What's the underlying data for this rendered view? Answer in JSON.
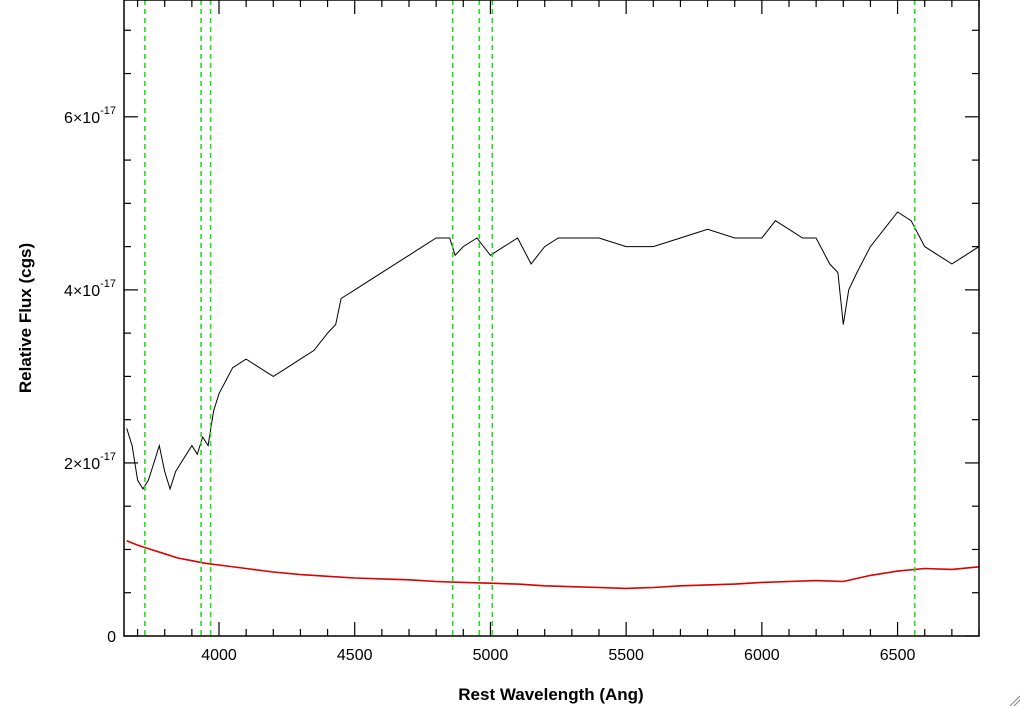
{
  "chart_data": {
    "type": "line",
    "title": "",
    "xlabel": "Rest Wavelength (Ang)",
    "ylabel": "Relative Flux (cgs)",
    "xlim": [
      3650,
      6800
    ],
    "ylim": [
      0,
      7.35e-17
    ],
    "x_ticks": [
      {
        "value": 4000,
        "label": "4000"
      },
      {
        "value": 4500,
        "label": "4500"
      },
      {
        "value": 5000,
        "label": "5000"
      },
      {
        "value": 5500,
        "label": "5500"
      },
      {
        "value": 6000,
        "label": "6000"
      },
      {
        "value": 6500,
        "label": "6500"
      }
    ],
    "y_ticks": [
      {
        "value": 0,
        "label": "0",
        "mantissa": "0",
        "exponent": ""
      },
      {
        "value": 2e-17,
        "label": "2×10⁻¹⁷",
        "mantissa": "2×10",
        "exponent": "-17"
      },
      {
        "value": 4e-17,
        "label": "4×10⁻¹⁷",
        "mantissa": "4×10",
        "exponent": "-17"
      },
      {
        "value": 6e-17,
        "label": "6×10⁻¹⁷",
        "mantissa": "6×10",
        "exponent": "-17"
      }
    ],
    "grid": false,
    "series": [
      {
        "color": "#000000",
        "x": [
          3660,
          3680,
          3700,
          3720,
          3740,
          3760,
          3780,
          3800,
          3820,
          3840,
          3860,
          3880,
          3900,
          3920,
          3940,
          3960,
          3980,
          4000,
          4050,
          4100,
          4150,
          4200,
          4250,
          4300,
          4350,
          4400,
          4430,
          4450,
          4500,
          4550,
          4600,
          4650,
          4700,
          4750,
          4800,
          4850,
          4870,
          4900,
          4950,
          5000,
          5050,
          5100,
          5150,
          5200,
          5250,
          5300,
          5400,
          5500,
          5600,
          5700,
          5800,
          5900,
          6000,
          6050,
          6100,
          6150,
          6200,
          6250,
          6280,
          6300,
          6320,
          6350,
          6400,
          6450,
          6500,
          6550,
          6600,
          6650,
          6700,
          6750,
          6800
        ],
        "y": [
          2.4e-17,
          2.2e-17,
          1.8e-17,
          1.7e-17,
          1.8e-17,
          2e-17,
          2.2e-17,
          1.9e-17,
          1.7e-17,
          1.9e-17,
          2e-17,
          2.1e-17,
          2.2e-17,
          2.1e-17,
          2.3e-17,
          2.2e-17,
          2.6e-17,
          2.8e-17,
          3.1e-17,
          3.2e-17,
          3.1e-17,
          3e-17,
          3.1e-17,
          3.2e-17,
          3.3e-17,
          3.5e-17,
          3.6e-17,
          3.9e-17,
          4e-17,
          4.1e-17,
          4.2e-17,
          4.3e-17,
          4.4e-17,
          4.5e-17,
          4.6e-17,
          4.6e-17,
          4.4e-17,
          4.5e-17,
          4.6e-17,
          4.4e-17,
          4.5e-17,
          4.6e-17,
          4.3e-17,
          4.5e-17,
          4.6e-17,
          4.6e-17,
          4.6e-17,
          4.5e-17,
          4.5e-17,
          4.6e-17,
          4.7e-17,
          4.6e-17,
          4.6e-17,
          4.8e-17,
          4.7e-17,
          4.6e-17,
          4.6e-17,
          4.3e-17,
          4.2e-17,
          3.6e-17,
          4e-17,
          4.2e-17,
          4.5e-17,
          4.7e-17,
          4.9e-17,
          4.8e-17,
          4.5e-17,
          4.4e-17,
          4.3e-17,
          4.4e-17,
          4.5e-17
        ]
      },
      {
        "color": "#dd0000",
        "x": [
          3660,
          3700,
          3750,
          3800,
          3850,
          3900,
          3950,
          4000,
          4100,
          4200,
          4300,
          4400,
          4500,
          4600,
          4700,
          4800,
          4900,
          5000,
          5100,
          5200,
          5300,
          5400,
          5500,
          5600,
          5700,
          5800,
          5900,
          6000,
          6100,
          6200,
          6300,
          6400,
          6500,
          6600,
          6700,
          6800
        ],
        "y": [
          1.1e-17,
          1.05e-17,
          1e-17,
          9.5e-18,
          9e-18,
          8.7e-18,
          8.4e-18,
          8.2e-18,
          7.8e-18,
          7.4e-18,
          7.1e-18,
          6.9e-18,
          6.7e-18,
          6.6e-18,
          6.5e-18,
          6.3e-18,
          6.2e-18,
          6.1e-18,
          6e-18,
          5.8e-18,
          5.7e-18,
          5.6e-18,
          5.5e-18,
          5.6e-18,
          5.8e-18,
          5.9e-18,
          6e-18,
          6.2e-18,
          6.3e-18,
          6.4e-18,
          6.3e-18,
          7e-18,
          7.5e-18,
          7.8e-18,
          7.7e-18,
          8e-18
        ]
      }
    ],
    "vertical_lines": {
      "color": "#22dd22",
      "x": [
        3727,
        3934,
        3969,
        4861,
        4959,
        5007,
        6563
      ]
    }
  }
}
